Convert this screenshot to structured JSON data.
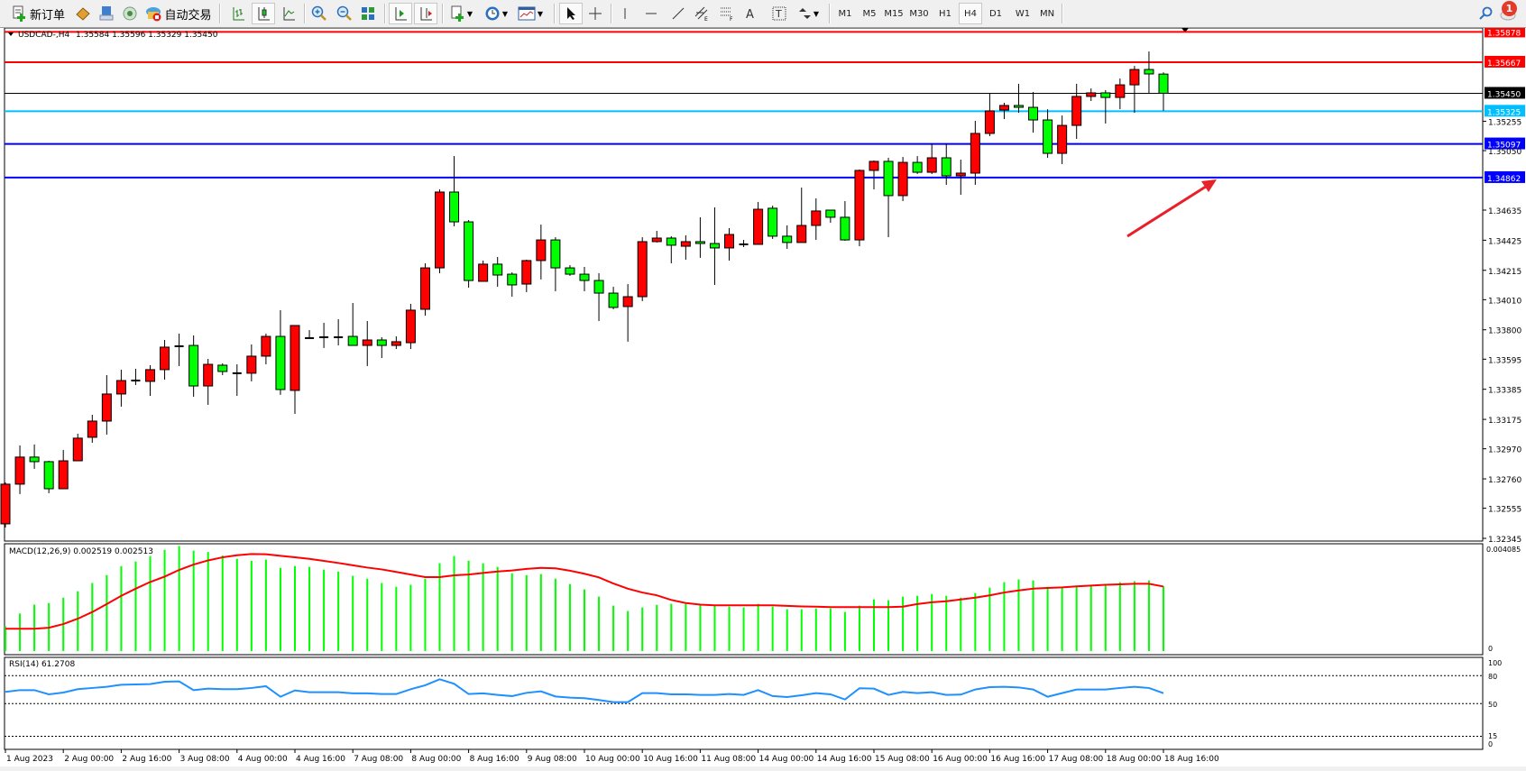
{
  "toolbar": {
    "new_order_label": "新订单",
    "auto_trading_label": "自动交易",
    "timeframes": [
      "M1",
      "M5",
      "M15",
      "M30",
      "H1",
      "H4",
      "D1",
      "W1",
      "MN"
    ],
    "active_timeframe": "H4",
    "notification_count": "1",
    "icons": [
      "new-order-icon",
      "market-watch-icon",
      "data-window-icon",
      "navigator-icon",
      "auto-trading-icon",
      "bar-chart-icon",
      "candlestick-icon",
      "line-chart-icon",
      "zoom-in-icon",
      "zoom-out-icon",
      "tile-windows-icon",
      "auto-scroll-icon",
      "chart-shift-icon",
      "new-chart-icon",
      "periodicity-icon",
      "templates-icon",
      "cursor-icon",
      "crosshair-icon",
      "vertical-line-icon",
      "horizontal-line-icon",
      "trendline-icon",
      "equidistant-channel-icon",
      "fibonacci-icon",
      "text-icon",
      "text-label-icon",
      "arrows-icon",
      "search-icon",
      "chat-icon"
    ]
  },
  "chart": {
    "symbol_header": "USDCAD-,H4",
    "ohlc_header": "1.35584 1.35596 1.35329 1.35450",
    "up_color": "#ff0000",
    "down_color": "#00ff00",
    "price_ticks": [
      "1.35255",
      "1.35050",
      "1.34635",
      "1.34425",
      "1.34215",
      "1.34010",
      "1.33800",
      "1.33595",
      "1.33385",
      "1.33175",
      "1.32970",
      "1.32760",
      "1.32555",
      "1.32345"
    ],
    "levels": [
      {
        "price": "1.35878",
        "color": "#ff0000"
      },
      {
        "price": "1.35667",
        "color": "#ff0000"
      },
      {
        "price": "1.35450",
        "color": "#000000"
      },
      {
        "price": "1.35325",
        "color": "#00bfff"
      },
      {
        "price": "1.35097",
        "color": "#0000ff"
      },
      {
        "price": "1.34862",
        "color": "#0000ff"
      }
    ],
    "annotation_arrow_color": "#e8202a",
    "time_labels": [
      "1 Aug 2023",
      "2 Aug 00:00",
      "2 Aug 16:00",
      "3 Aug 08:00",
      "4 Aug 00:00",
      "4 Aug 16:00",
      "7 Aug 08:00",
      "8 Aug 00:00",
      "8 Aug 16:00",
      "9 Aug 08:00",
      "10 Aug 00:00",
      "10 Aug 16:00",
      "11 Aug 08:00",
      "14 Aug 00:00",
      "14 Aug 16:00",
      "15 Aug 08:00",
      "16 Aug 00:00",
      "16 Aug 16:00",
      "17 Aug 08:00",
      "18 Aug 00:00",
      "18 Aug 16:00"
    ]
  },
  "macd": {
    "label": "MACD(12,26,9) 0.002519 0.002513",
    "scale_max": "0.004085",
    "scale_zero": "0",
    "hist_color": "#00ff00",
    "signal_color": "#ff0000"
  },
  "rsi": {
    "label": "RSI(14) 61.2708",
    "scale_labels": [
      "100",
      "80",
      "50",
      "15",
      "0"
    ],
    "levels": [
      80,
      50,
      15
    ],
    "line_color": "#1e90ff"
  },
  "chart_data": {
    "type": "candlestick",
    "timeframe": "H4",
    "ohlc": [
      [
        1.32446,
        1.32735,
        1.32421,
        1.32723
      ],
      [
        1.32723,
        1.32993,
        1.32654,
        1.32912
      ],
      [
        1.32912,
        1.33,
        1.3283,
        1.3288
      ],
      [
        1.3288,
        1.32886,
        1.3266,
        1.32691
      ],
      [
        1.32691,
        1.32962,
        1.32691,
        1.32886
      ],
      [
        1.32886,
        1.33075,
        1.32886,
        1.33044
      ],
      [
        1.3305,
        1.33207,
        1.33012,
        1.33163
      ],
      [
        1.33163,
        1.33484,
        1.33069,
        1.33352
      ],
      [
        1.33352,
        1.33522,
        1.33264,
        1.33446
      ],
      [
        1.3344,
        1.33528,
        1.33415,
        1.33446
      ],
      [
        1.3344,
        1.33553,
        1.33339,
        1.33522
      ],
      [
        1.33522,
        1.33729,
        1.33452,
        1.33679
      ],
      [
        1.33679,
        1.33773,
        1.33547,
        1.33685
      ],
      [
        1.33691,
        1.33761,
        1.33333,
        1.33408
      ],
      [
        1.33408,
        1.33597,
        1.33276,
        1.33559
      ],
      [
        1.33553,
        1.33566,
        1.33484,
        1.33509
      ],
      [
        1.33497,
        1.33559,
        1.33339,
        1.33492
      ],
      [
        1.33497,
        1.33698,
        1.3344,
        1.33616
      ],
      [
        1.33616,
        1.33773,
        1.33559,
        1.33754
      ],
      [
        1.33754,
        1.33937,
        1.33346,
        1.33383
      ],
      [
        1.33377,
        1.3383,
        1.33213,
        1.3383
      ],
      [
        1.33742,
        1.33798,
        1.33742,
        1.33742
      ],
      [
        1.33748,
        1.33849,
        1.33673,
        1.33736
      ],
      [
        1.33736,
        1.33874,
        1.33691,
        1.33748
      ],
      [
        1.33754,
        1.33987,
        1.33691,
        1.33691
      ],
      [
        1.33691,
        1.33861,
        1.33547,
        1.33729
      ],
      [
        1.33729,
        1.33748,
        1.33603,
        1.33691
      ],
      [
        1.33691,
        1.33754,
        1.33666,
        1.33717
      ],
      [
        1.3371,
        1.33981,
        1.33666,
        1.33937
      ],
      [
        1.33943,
        1.34264,
        1.33899,
        1.34232
      ],
      [
        1.34232,
        1.3478,
        1.34195,
        1.34761
      ],
      [
        1.34761,
        1.35012,
        1.34522,
        1.34553
      ],
      [
        1.34553,
        1.34566,
        1.34094,
        1.34144
      ],
      [
        1.34138,
        1.34283,
        1.34138,
        1.34258
      ],
      [
        1.34258,
        1.34308,
        1.341,
        1.34182
      ],
      [
        1.34188,
        1.34201,
        1.34031,
        1.34113
      ],
      [
        1.34119,
        1.34289,
        1.34063,
        1.34283
      ],
      [
        1.34283,
        1.34534,
        1.34151,
        1.34427
      ],
      [
        1.34427,
        1.34446,
        1.34069,
        1.34232
      ],
      [
        1.34232,
        1.34251,
        1.34176,
        1.34188
      ],
      [
        1.34188,
        1.34239,
        1.34069,
        1.34144
      ],
      [
        1.34144,
        1.34195,
        1.33861,
        1.34056
      ],
      [
        1.34056,
        1.341,
        1.33943,
        1.33956
      ],
      [
        1.33962,
        1.34119,
        1.33717,
        1.34031
      ],
      [
        1.34031,
        1.34446,
        1.34,
        1.34415
      ],
      [
        1.34415,
        1.3449,
        1.34409,
        1.3444
      ],
      [
        1.3444,
        1.34453,
        1.34264,
        1.3439
      ],
      [
        1.34383,
        1.34459,
        1.34289,
        1.34415
      ],
      [
        1.34415,
        1.34585,
        1.34302,
        1.34402
      ],
      [
        1.34402,
        1.34654,
        1.34113,
        1.34371
      ],
      [
        1.34371,
        1.34509,
        1.34283,
        1.34465
      ],
      [
        1.3439,
        1.34427,
        1.34377,
        1.34396
      ],
      [
        1.34396,
        1.34692,
        1.34396,
        1.34641
      ],
      [
        1.34648,
        1.34666,
        1.34434,
        1.34453
      ],
      [
        1.34453,
        1.34528,
        1.34365,
        1.34409
      ],
      [
        1.34409,
        1.34792,
        1.34409,
        1.34528
      ],
      [
        1.34528,
        1.34717,
        1.34427,
        1.34629
      ],
      [
        1.34635,
        1.34635,
        1.34547,
        1.34585
      ],
      [
        1.34585,
        1.34698,
        1.34421,
        1.34427
      ],
      [
        1.34427,
        1.34918,
        1.34383,
        1.34912
      ],
      [
        1.34912,
        1.34981,
        1.3478,
        1.34975
      ],
      [
        1.34975,
        1.35,
        1.34446,
        1.34736
      ],
      [
        1.34736,
        1.35006,
        1.34698,
        1.34968
      ],
      [
        1.34968,
        1.35012,
        1.34887,
        1.34899
      ],
      [
        1.34899,
        1.351,
        1.34887,
        1.35
      ],
      [
        1.35,
        1.351,
        1.34811,
        1.34874
      ],
      [
        1.34874,
        1.34987,
        1.34742,
        1.34893
      ],
      [
        1.34893,
        1.35258,
        1.34811,
        1.3517
      ],
      [
        1.3517,
        1.35453,
        1.35151,
        1.35327
      ],
      [
        1.35333,
        1.35384,
        1.3527,
        1.35365
      ],
      [
        1.35365,
        1.35516,
        1.35314,
        1.35352
      ],
      [
        1.35352,
        1.35459,
        1.35176,
        1.35264
      ],
      [
        1.35264,
        1.35339,
        1.35,
        1.35031
      ],
      [
        1.35031,
        1.35295,
        1.34956,
        1.35226
      ],
      [
        1.35226,
        1.35516,
        1.35132,
        1.35428
      ],
      [
        1.35428,
        1.35484,
        1.35396,
        1.35453
      ],
      [
        1.35453,
        1.35472,
        1.35239,
        1.35421
      ],
      [
        1.35421,
        1.35553,
        1.35339,
        1.35509
      ],
      [
        1.35509,
        1.35641,
        1.35314,
        1.35616
      ],
      [
        1.35616,
        1.35742,
        1.35446,
        1.35585
      ],
      [
        1.35584,
        1.35596,
        1.35329,
        1.3545
      ]
    ],
    "macd_histogram": [
      0.00096,
      0.00146,
      0.00181,
      0.00187,
      0.00208,
      0.00233,
      0.00265,
      0.00296,
      0.00331,
      0.00349,
      0.0037,
      0.00394,
      0.00409,
      0.00391,
      0.00386,
      0.00372,
      0.00359,
      0.00351,
      0.00356,
      0.00324,
      0.00331,
      0.00328,
      0.00317,
      0.0031,
      0.00293,
      0.00282,
      0.00265,
      0.0025,
      0.00258,
      0.00282,
      0.00342,
      0.0037,
      0.00352,
      0.00342,
      0.00328,
      0.00303,
      0.00296,
      0.003,
      0.00282,
      0.00261,
      0.0024,
      0.00212,
      0.00177,
      0.00156,
      0.0017,
      0.0018,
      0.00184,
      0.00184,
      0.0018,
      0.00177,
      0.00173,
      0.0017,
      0.00184,
      0.00173,
      0.00163,
      0.00163,
      0.00166,
      0.00166,
      0.00152,
      0.00177,
      0.00201,
      0.00198,
      0.00212,
      0.00215,
      0.00222,
      0.00215,
      0.00208,
      0.00226,
      0.00247,
      0.00268,
      0.00279,
      0.00275,
      0.0025,
      0.00247,
      0.0025,
      0.00258,
      0.00261,
      0.00268,
      0.00272,
      0.00275,
      0.002519
    ],
    "macd_signal": [
      0.00087,
      0.00087,
      0.00087,
      0.00091,
      0.00105,
      0.00126,
      0.00152,
      0.00183,
      0.00215,
      0.00243,
      0.00269,
      0.0029,
      0.00316,
      0.00337,
      0.00353,
      0.00365,
      0.00373,
      0.00378,
      0.00377,
      0.00371,
      0.00365,
      0.00359,
      0.00351,
      0.00343,
      0.00334,
      0.00325,
      0.00318,
      0.00308,
      0.00298,
      0.00288,
      0.00288,
      0.00295,
      0.00298,
      0.00304,
      0.0031,
      0.00314,
      0.0032,
      0.00324,
      0.00322,
      0.00313,
      0.00301,
      0.00287,
      0.00263,
      0.00243,
      0.00228,
      0.00217,
      0.00199,
      0.00187,
      0.00181,
      0.00178,
      0.00178,
      0.00178,
      0.00178,
      0.00178,
      0.00176,
      0.00174,
      0.00173,
      0.00171,
      0.00171,
      0.00171,
      0.00171,
      0.00171,
      0.00173,
      0.00183,
      0.0019,
      0.00194,
      0.00201,
      0.00208,
      0.00217,
      0.00228,
      0.00236,
      0.00243,
      0.00246,
      0.00248,
      0.00252,
      0.00255,
      0.00258,
      0.0026,
      0.00262,
      0.00262,
      0.002513
    ],
    "rsi": [
      62.6,
      64.5,
      64.5,
      60.0,
      61.9,
      65.5,
      66.8,
      68.1,
      70.3,
      70.6,
      71.0,
      73.5,
      73.9,
      64.5,
      66.1,
      65.5,
      65.5,
      66.8,
      68.7,
      57.4,
      64.2,
      62.3,
      62.3,
      62.3,
      61.0,
      61.0,
      60.3,
      60.3,
      65.5,
      69.7,
      76.1,
      71.3,
      60.3,
      61.0,
      59.4,
      58.1,
      61.6,
      63.2,
      57.7,
      56.5,
      55.8,
      53.9,
      51.6,
      51.6,
      61.3,
      61.3,
      60.0,
      60.0,
      59.4,
      59.4,
      60.3,
      59.4,
      64.5,
      58.1,
      57.1,
      59.0,
      61.3,
      60.0,
      54.5,
      66.5,
      66.1,
      59.4,
      62.6,
      61.3,
      62.3,
      59.4,
      59.7,
      65.2,
      67.7,
      68.1,
      67.4,
      65.2,
      57.4,
      61.3,
      65.2,
      65.2,
      65.2,
      66.8,
      68.1,
      66.8,
      61.27
    ],
    "ylim": [
      1.32345,
      1.35878
    ]
  }
}
